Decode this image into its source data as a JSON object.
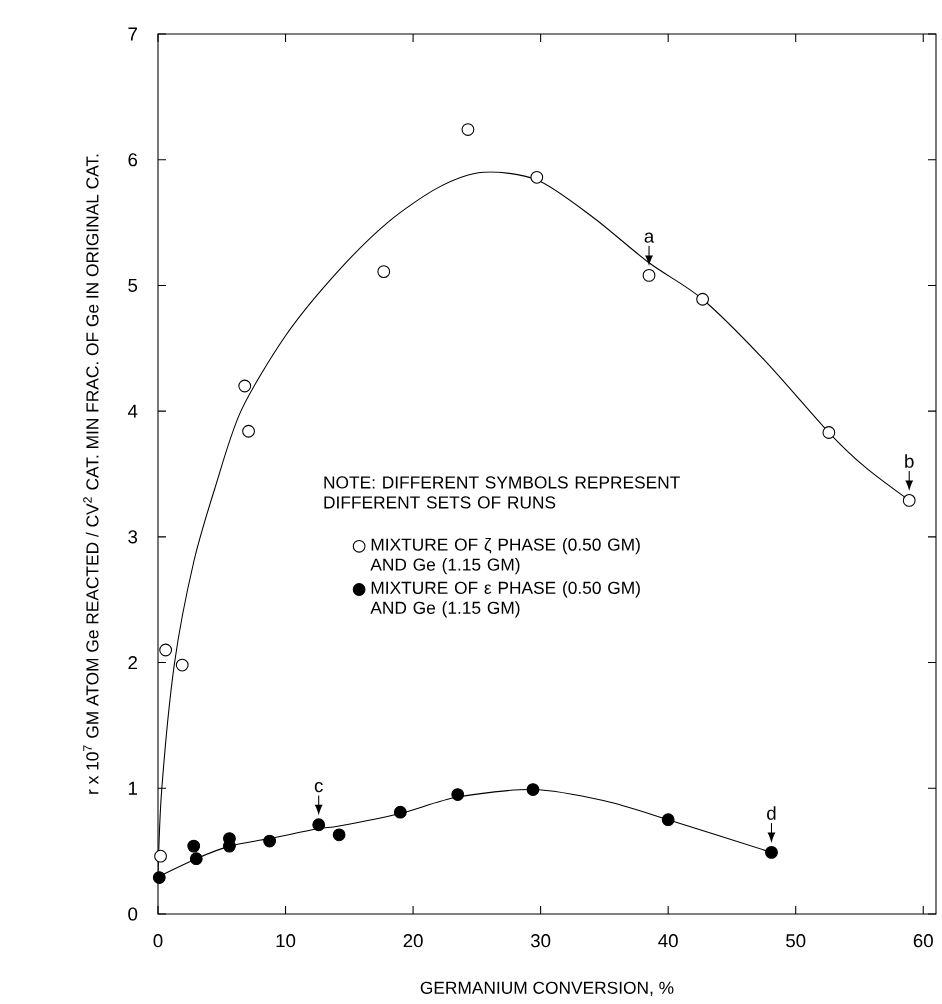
{
  "chart_data": {
    "type": "scatter",
    "xlabel": "GERMANIUM   CONVERSION,   %",
    "ylabel": "r x 10$^{7}$   GM ATOM Ge REACTED / CV$^{2}$ CAT. MIN FRAC. OF Ge IN ORIGINAL CAT.",
    "xlim": [
      0,
      61
    ],
    "ylim": [
      0,
      7
    ],
    "xticks": [
      0,
      10,
      20,
      30,
      40,
      50,
      60
    ],
    "yticks": [
      0,
      1,
      2,
      3,
      4,
      5,
      6,
      7
    ],
    "grid": false,
    "legend": "center",
    "marker": "circle",
    "series": [
      {
        "name": "MIXTURE OF ζ PHASE (0.50 GM) AND Ge (1.15 GM)",
        "color": "#ffffff",
        "x": [
          0.2,
          0.6,
          1.9,
          6.8,
          7.1,
          17.7,
          24.3,
          29.7,
          38.5,
          42.7,
          52.6,
          58.9
        ],
        "values": [
          0.46,
          2.1,
          1.98,
          4.2,
          3.84,
          5.11,
          6.24,
          5.86,
          5.08,
          4.89,
          3.83,
          3.29
        ]
      },
      {
        "name": "MIXTURE OF ε PHASE (0.50 GM) AND Ge (1.15 GM)",
        "color": "#000000",
        "x": [
          0.1,
          2.8,
          3.0,
          5.6,
          5.6,
          8.75,
          12.6,
          14.2,
          19.0,
          23.5,
          29.4,
          40.0,
          48.1
        ],
        "values": [
          0.29,
          0.54,
          0.44,
          0.6,
          0.54,
          0.58,
          0.71,
          0.63,
          0.81,
          0.95,
          0.99,
          0.75,
          0.49
        ]
      },
      {
        "type": "line",
        "color": "#000000",
        "marker": "none",
        "x": [
          0.0,
          0.3,
          1.3,
          2.8,
          4.5,
          6.5,
          10,
          14,
          18,
          22,
          25.5,
          29.7,
          34,
          38.5,
          42.7,
          47.6,
          52.6,
          55.5,
          58.9
        ],
        "values": [
          0.3,
          1.0,
          2.0,
          2.8,
          3.4,
          4.0,
          4.6,
          5.1,
          5.5,
          5.78,
          5.9,
          5.84,
          5.55,
          5.18,
          4.89,
          4.4,
          3.83,
          3.55,
          3.29
        ]
      },
      {
        "type": "line",
        "color": "#000000",
        "marker": "none",
        "x": [
          0.1,
          3.0,
          5.6,
          8.75,
          12.6,
          14.2,
          19.0,
          23.5,
          29.4,
          35,
          40.0,
          48.1
        ],
        "values": [
          0.3,
          0.44,
          0.54,
          0.6,
          0.68,
          0.7,
          0.8,
          0.93,
          0.99,
          0.9,
          0.75,
          0.49
        ]
      }
    ],
    "annotations": [
      "NOTE: DIFFERENT SYMBOLS REPRESENT DIFFERENT SETS OF RUNS",
      {
        "text": "a",
        "x": 38.5,
        "y": 5.08
      },
      {
        "text": "b",
        "x": 58.9,
        "y": 3.29
      },
      {
        "text": "c",
        "x": 12.6,
        "y": 0.71
      },
      {
        "text": "d",
        "x": 48.1,
        "y": 0.49
      }
    ]
  }
}
